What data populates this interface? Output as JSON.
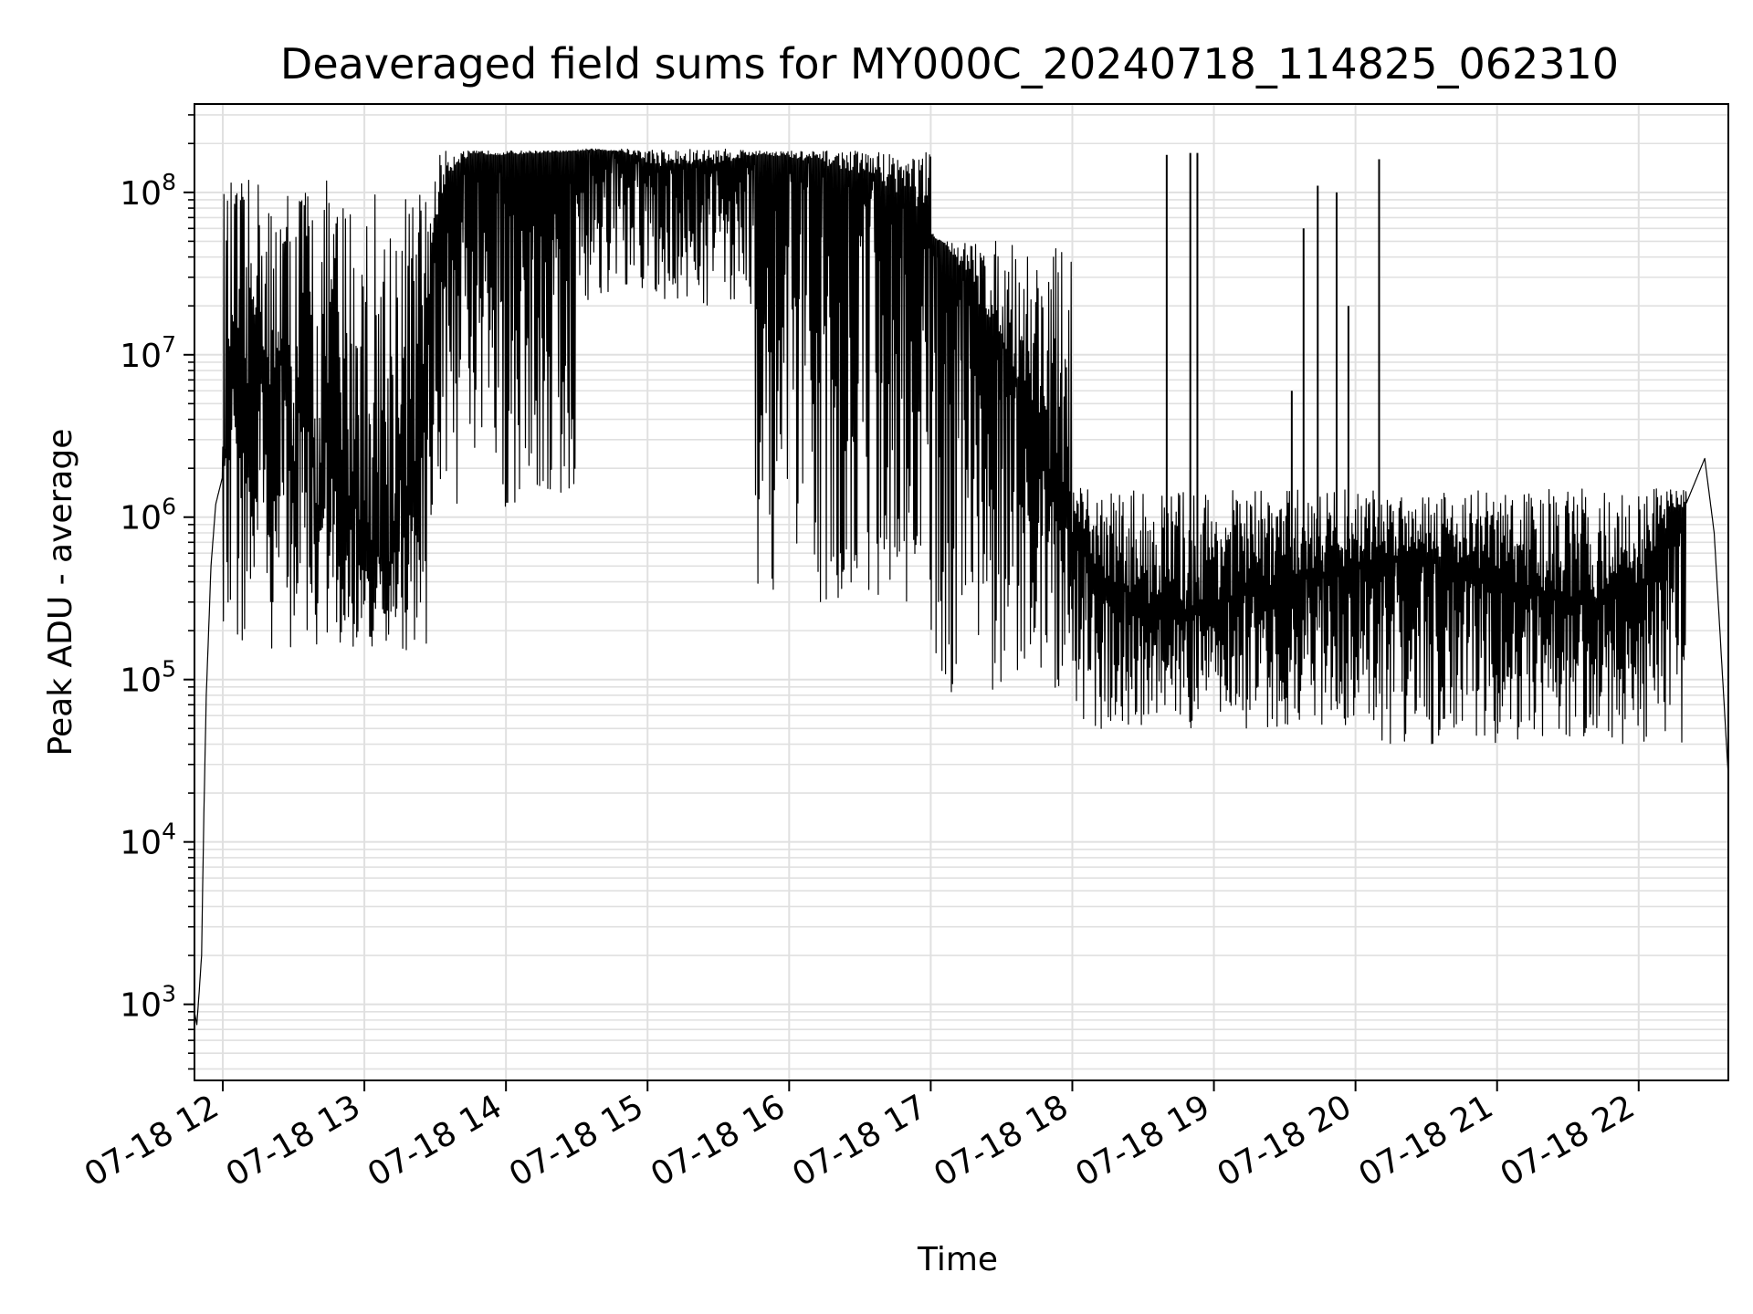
{
  "chart_data": {
    "type": "line",
    "title": "Deaveraged field sums for MY000C_20240718_114825_062310",
    "xlabel": "Time",
    "ylabel": "Peak ADU - average",
    "yscale": "log",
    "ylim": [
      340,
      350000000
    ],
    "xlim": [
      "2024-07-18 11:48",
      "2024-07-18 22:38"
    ],
    "grid": true,
    "line_color": "#000000",
    "x_ticks": [
      {
        "t": "2024-07-18 12:00",
        "label": "07-18 12"
      },
      {
        "t": "2024-07-18 13:00",
        "label": "07-18 13"
      },
      {
        "t": "2024-07-18 14:00",
        "label": "07-18 14"
      },
      {
        "t": "2024-07-18 15:00",
        "label": "07-18 15"
      },
      {
        "t": "2024-07-18 16:00",
        "label": "07-18 16"
      },
      {
        "t": "2024-07-18 17:00",
        "label": "07-18 17"
      },
      {
        "t": "2024-07-18 18:00",
        "label": "07-18 18"
      },
      {
        "t": "2024-07-18 19:00",
        "label": "07-18 19"
      },
      {
        "t": "2024-07-18 20:00",
        "label": "07-18 20"
      },
      {
        "t": "2024-07-18 21:00",
        "label": "07-18 21"
      },
      {
        "t": "2024-07-18 22:00",
        "label": "07-18 22"
      }
    ],
    "y_ticks": [
      {
        "value": 1000,
        "base": "10",
        "exp": "3"
      },
      {
        "value": 10000,
        "base": "10",
        "exp": "4"
      },
      {
        "value": 100000,
        "base": "10",
        "exp": "5"
      },
      {
        "value": 1000000,
        "base": "10",
        "exp": "6"
      },
      {
        "value": 10000000,
        "base": "10",
        "exp": "7"
      },
      {
        "value": 100000000,
        "base": "10",
        "exp": "8"
      }
    ],
    "series": [
      {
        "points": [
          [
            "2024-07-18 11:48",
            900
          ],
          [
            "2024-07-18 11:49",
            750
          ],
          [
            "2024-07-18 11:50",
            1200
          ],
          [
            "2024-07-18 11:51",
            2000
          ],
          [
            "2024-07-18 11:52",
            15000
          ],
          [
            "2024-07-18 11:53",
            80000
          ],
          [
            "2024-07-18 11:54",
            200000
          ],
          [
            "2024-07-18 11:55",
            500000
          ],
          [
            "2024-07-18 11:57",
            1200000
          ],
          [
            "2024-07-18 12:00",
            1800000
          ],
          [
            "2024-07-18 12:05",
            9000000
          ],
          [
            "2024-07-18 12:10",
            2000000
          ],
          [
            "2024-07-18 12:15",
            30000000
          ],
          [
            "2024-07-18 12:20",
            900000
          ],
          [
            "2024-07-18 12:25",
            12000000
          ],
          [
            "2024-07-18 12:30",
            1500000
          ],
          [
            "2024-07-18 12:35",
            20000000
          ],
          [
            "2024-07-18 12:40",
            600000
          ],
          [
            "2024-07-18 12:45",
            8000000
          ],
          [
            "2024-07-18 12:50",
            400000
          ],
          [
            "2024-07-18 12:55",
            1500000
          ],
          [
            "2024-07-18 13:00",
            500000
          ],
          [
            "2024-07-18 13:05",
            700000
          ],
          [
            "2024-07-18 13:10",
            300000
          ],
          [
            "2024-07-18 13:15",
            2000000
          ],
          [
            "2024-07-18 13:20",
            1000000
          ],
          [
            "2024-07-18 13:25",
            5000000
          ],
          [
            "2024-07-18 13:30",
            60000000
          ],
          [
            "2024-07-18 13:35",
            120000000
          ],
          [
            "2024-07-18 13:40",
            150000000
          ],
          [
            "2024-07-18 13:50",
            170000000
          ],
          [
            "2024-07-18 14:00",
            168000000
          ],
          [
            "2024-07-18 14:10",
            172000000
          ],
          [
            "2024-07-18 14:20",
            175000000
          ],
          [
            "2024-07-18 14:30",
            178000000
          ],
          [
            "2024-07-18 14:40",
            180000000
          ],
          [
            "2024-07-18 14:50",
            175000000
          ],
          [
            "2024-07-18 15:00",
            150000000
          ],
          [
            "2024-07-18 15:10",
            140000000
          ],
          [
            "2024-07-18 15:20",
            145000000
          ],
          [
            "2024-07-18 15:30",
            150000000
          ],
          [
            "2024-07-18 15:40",
            160000000
          ],
          [
            "2024-07-18 15:50",
            170000000
          ],
          [
            "2024-07-18 16:00",
            160000000
          ],
          [
            "2024-07-18 16:10",
            150000000
          ],
          [
            "2024-07-18 16:20",
            140000000
          ],
          [
            "2024-07-18 16:30",
            130000000
          ],
          [
            "2024-07-18 16:40",
            110000000
          ],
          [
            "2024-07-18 16:50",
            90000000
          ],
          [
            "2024-07-18 17:00",
            60000000
          ],
          [
            "2024-07-18 17:10",
            40000000
          ],
          [
            "2024-07-18 17:20",
            20000000
          ],
          [
            "2024-07-18 17:30",
            12000000
          ],
          [
            "2024-07-18 17:40",
            5000000
          ],
          [
            "2024-07-18 17:50",
            2000000
          ],
          [
            "2024-07-18 18:00",
            700000
          ],
          [
            "2024-07-18 18:15",
            400000
          ],
          [
            "2024-07-18 18:30",
            300000
          ],
          [
            "2024-07-18 18:45",
            250000
          ],
          [
            "2024-07-18 19:00",
            300000
          ],
          [
            "2024-07-18 19:15",
            350000
          ],
          [
            "2024-07-18 19:30",
            400000
          ],
          [
            "2024-07-18 19:45",
            450000
          ],
          [
            "2024-07-18 20:00",
            500000
          ],
          [
            "2024-07-18 20:15",
            550000
          ],
          [
            "2024-07-18 20:30",
            600000
          ],
          [
            "2024-07-18 20:45",
            500000
          ],
          [
            "2024-07-18 21:00",
            400000
          ],
          [
            "2024-07-18 21:15",
            350000
          ],
          [
            "2024-07-18 21:30",
            300000
          ],
          [
            "2024-07-18 21:45",
            300000
          ],
          [
            "2024-07-18 22:00",
            350000
          ],
          [
            "2024-07-18 22:10",
            800000
          ],
          [
            "2024-07-18 22:20",
            1200000
          ],
          [
            "2024-07-18 22:28",
            2300000
          ],
          [
            "2024-07-18 22:32",
            800000
          ],
          [
            "2024-07-18 22:36",
            80000
          ],
          [
            "2024-07-18 22:38",
            25000
          ]
        ],
        "noise_bands": [
          {
            "from": "2024-07-18 12:00",
            "to": "2024-07-18 13:30",
            "low": 150000,
            "high": 120000000
          },
          {
            "from": "2024-07-18 13:30",
            "to": "2024-07-18 14:30",
            "low": 1000000,
            "high": 180000000
          },
          {
            "from": "2024-07-18 14:30",
            "to": "2024-07-18 15:45",
            "low": 20000000,
            "high": 185000000
          },
          {
            "from": "2024-07-18 15:45",
            "to": "2024-07-18 17:00",
            "low": 300000,
            "high": 180000000
          },
          {
            "from": "2024-07-18 17:00",
            "to": "2024-07-18 18:00",
            "low": 80000,
            "high": 50000000
          },
          {
            "from": "2024-07-18 18:00",
            "to": "2024-07-18 20:00",
            "low": 50000,
            "high": 1500000
          },
          {
            "from": "2024-07-18 20:00",
            "to": "2024-07-18 22:20",
            "low": 40000,
            "high": 1500000
          }
        ],
        "spikes": [
          {
            "t": "2024-07-18 18:40",
            "value": 170000000
          },
          {
            "t": "2024-07-18 18:50",
            "value": 175000000
          },
          {
            "t": "2024-07-18 18:53",
            "value": 175000000
          },
          {
            "t": "2024-07-18 19:38",
            "value": 60000000
          },
          {
            "t": "2024-07-18 19:44",
            "value": 110000000
          },
          {
            "t": "2024-07-18 19:52",
            "value": 100000000
          },
          {
            "t": "2024-07-18 19:57",
            "value": 20000000
          },
          {
            "t": "2024-07-18 20:10",
            "value": 160000000
          },
          {
            "t": "2024-07-18 19:33",
            "value": 6000000
          }
        ]
      }
    ]
  }
}
